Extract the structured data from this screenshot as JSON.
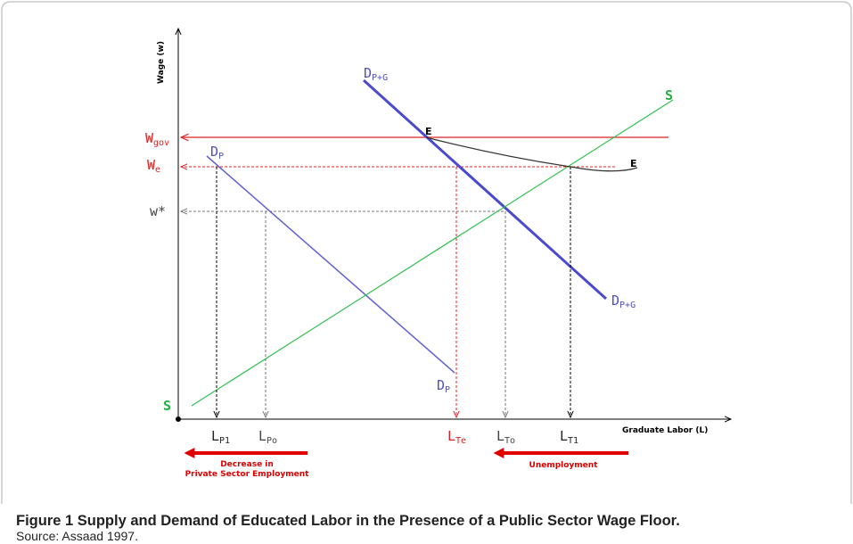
{
  "axes": {
    "y_label": "Wage (w)",
    "x_label": "Graduate Labor (L)"
  },
  "wage_labels": {
    "w_gov": {
      "main": "W",
      "sub": "gov"
    },
    "w_e": {
      "main": "W",
      "sub": "e"
    },
    "w_star": {
      "main": "w*"
    }
  },
  "curve_labels": {
    "d_p": {
      "main": "D",
      "sub": "P"
    },
    "d_pg": {
      "main": "D",
      "sub": "P+G"
    },
    "s": {
      "main": "S"
    },
    "e": {
      "main": "E"
    }
  },
  "labor_labels": {
    "l_p1": {
      "main": "L",
      "sub": "P1"
    },
    "l_po": {
      "main": "L",
      "sub": "Po"
    },
    "l_te": {
      "main": "L",
      "sub": "Te"
    },
    "l_to": {
      "main": "L",
      "sub": "To"
    },
    "l_t1": {
      "main": "L",
      "sub": "T1"
    }
  },
  "annotations": {
    "decrease": [
      "Decrease in",
      "Private Sector Employment"
    ],
    "unemployment": "Unemployment"
  },
  "caption": {
    "title": "Figure 1 Supply and Demand of Educated Labor in the Presence of a Public Sector Wage Floor.",
    "source": "Source: Assaad 1997."
  }
}
